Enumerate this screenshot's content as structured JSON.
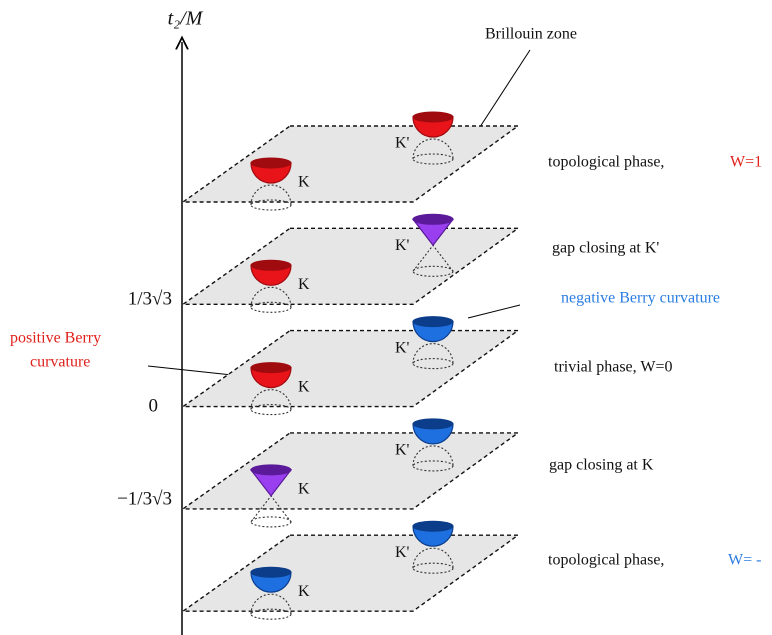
{
  "axis": {
    "label": "t₂/M",
    "ticks": [
      "1/3√3",
      "0",
      "−1/3√3"
    ]
  },
  "brillouin_label": "Brillouin zone",
  "positive_curvature": [
    "positive Berry",
    "curvature"
  ],
  "negative_curvature": "negative Berry curvature",
  "planes": [
    {
      "k": "K",
      "kp": "K'",
      "phase": "topological phase,",
      "winding": "W=1"
    },
    {
      "k": "K",
      "kp": "K'",
      "phase": "gap closing at K'"
    },
    {
      "k": "K",
      "kp": "K'",
      "phase": "trivial phase, W=0"
    },
    {
      "k": "K",
      "kp": "K'",
      "phase": "gap closing at K"
    },
    {
      "k": "K",
      "kp": "K'",
      "phase": "topological phase,",
      "winding": "W= -"
    }
  ]
}
